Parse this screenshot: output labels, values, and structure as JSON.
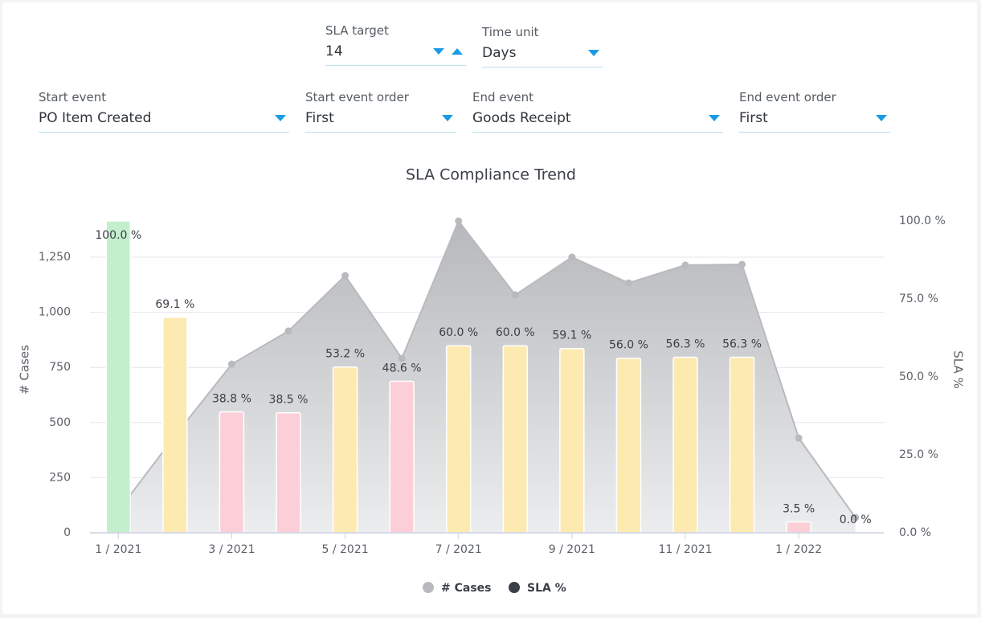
{
  "controls": [
    {
      "label": "SLA target",
      "value": "14"
    },
    {
      "label": "Time unit",
      "value": "Days"
    },
    {
      "label": "Start event",
      "value": "PO Item Created"
    },
    {
      "label": "Start event order",
      "value": "First"
    },
    {
      "label": "End event",
      "value": "Goods Receipt"
    },
    {
      "label": "End event order",
      "value": "First"
    }
  ],
  "chart_data": {
    "type": "bar-area",
    "title": "SLA Compliance Trend",
    "ylabel": "# Cases",
    "y2label": "SLA %",
    "categories": [
      "1 / 2021",
      null,
      "3 / 2021",
      null,
      "5 / 2021",
      null,
      "7 / 2021",
      null,
      "9 / 2021",
      null,
      "11 / 2021",
      null,
      "1 / 2022",
      null
    ],
    "ylim": [
      0,
      1414
    ],
    "yticks": [
      0,
      250,
      500,
      750,
      {
        "value": 1000,
        "label": "1,000"
      },
      {
        "value": 1250,
        "label": "1,250"
      }
    ],
    "y2lim": [
      0,
      100
    ],
    "y2ticks": [
      {
        "value": 0,
        "label": "0.0 %"
      },
      {
        "value": 25,
        "label": "25.0 %"
      },
      {
        "value": 50,
        "label": "50.0 %"
      },
      {
        "value": 75,
        "label": "75.0 %"
      },
      {
        "value": 100,
        "label": "100.0 %"
      }
    ],
    "grid": true,
    "series": [
      {
        "name": "# Cases",
        "color": "#b8babd",
        "values": [
          100,
          440,
          765,
          915,
          1166,
          791,
          1414,
          1079,
          1250,
          1133,
          1214,
          1217,
          430,
          69
        ]
      },
      {
        "name": "SLA %",
        "color": "#3a3f48",
        "axis": "y2",
        "values": [
          100.0,
          69.1,
          38.8,
          38.5,
          53.2,
          48.6,
          60.0,
          60.0,
          59.1,
          56.0,
          56.3,
          56.3,
          3.5,
          0.0
        ],
        "value_labels": [
          "100.0 %",
          "69.1 %",
          "38.8 %",
          "38.5 %",
          "53.2 %",
          "48.6 %",
          "60.0 %",
          "60.0 %",
          "59.1 %",
          "56.0 %",
          "56.3 %",
          "56.3 %",
          "3.5 %",
          "0.0 %"
        ],
        "colors": [
          "#c3efcc",
          "#fdeab1",
          "#fccfd8",
          "#fccfd8",
          "#fdeab1",
          "#fccfd8",
          "#fdeab1",
          "#fdeab1",
          "#fdeab1",
          "#fdeab1",
          "#fdeab1",
          "#fdeab1",
          "#fccfd8",
          "#fccfd8"
        ]
      }
    ]
  }
}
